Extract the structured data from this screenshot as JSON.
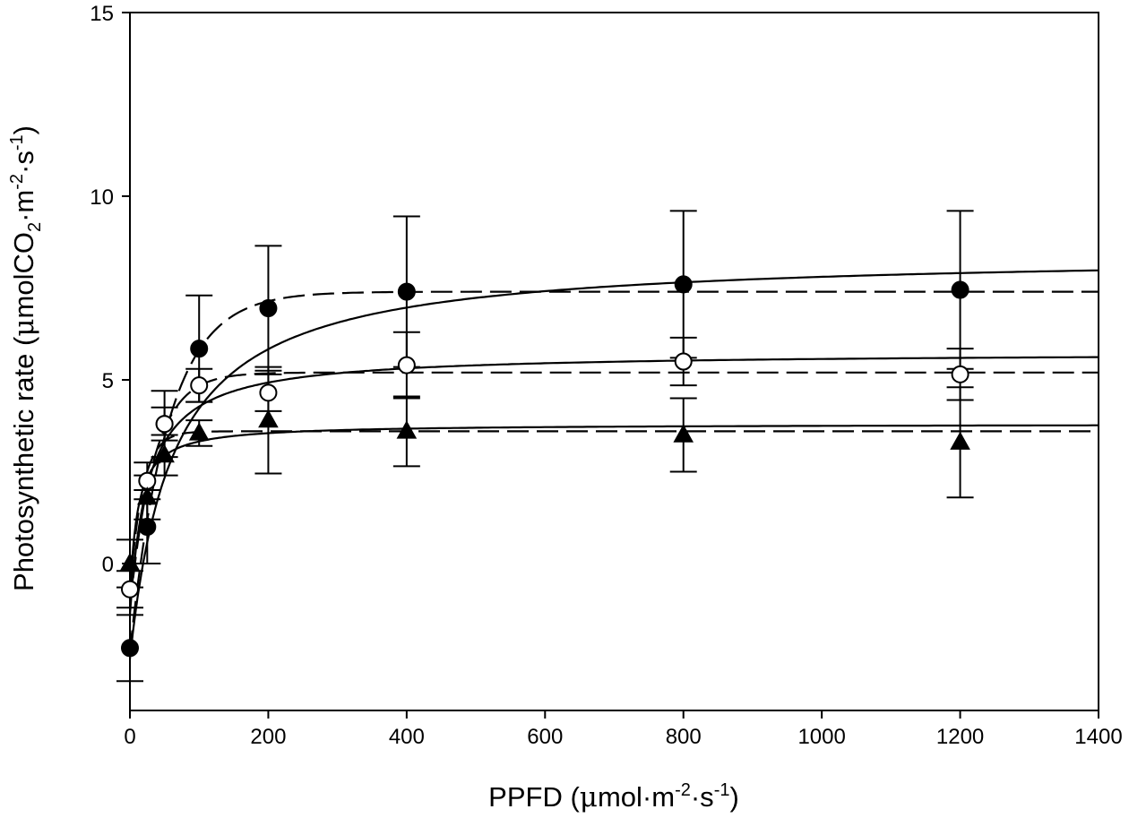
{
  "chart_data": {
    "type": "scatter",
    "xlabel": {
      "main": "PPFD (",
      "mu": "μ",
      "unit": "mol·m",
      "sup1": "-2",
      "mid": "·s",
      "sup2": "-1",
      "close": ")"
    },
    "ylabel": {
      "main": "Photosynthetic rate (",
      "mu": "μ",
      "unit": "molCO",
      "sub": "2",
      "mid1": "·m",
      "sup1": "-2",
      "mid2": "·s",
      "sup2": "-1",
      "close": ")"
    },
    "xlim": [
      0,
      1400
    ],
    "ylim": [
      -4,
      15
    ],
    "x_ticks": [
      "0",
      "200",
      "400",
      "600",
      "800",
      "1000",
      "1200",
      "1400"
    ],
    "y_ticks": [
      "0",
      "5",
      "10",
      "15"
    ],
    "grid": false,
    "legend": "none",
    "series": [
      {
        "marker": "filled-circle",
        "x": [
          0,
          25,
          50,
          100,
          200,
          400,
          800,
          1200
        ],
        "y": [
          -2.3,
          1.0,
          3.8,
          5.85,
          6.95,
          7.4,
          7.6,
          7.45
        ],
        "err": [
          0.9,
          1.0,
          0.9,
          1.45,
          1.7,
          2.05,
          2.0,
          2.15
        ],
        "fit_solid": {
          "type": "rectangular-hyperbola",
          "pmax": 8.45,
          "k": 62,
          "rd": -2.6
        },
        "fit_dashed": {
          "type": "exponential",
          "pmax": 7.4,
          "k": 55,
          "rd": -2.4
        }
      },
      {
        "marker": "open-circle",
        "x": [
          0,
          25,
          50,
          100,
          200,
          400,
          800,
          1200
        ],
        "y": [
          -0.7,
          2.25,
          3.8,
          4.85,
          4.65,
          5.4,
          5.5,
          5.15
        ],
        "err": [
          0.5,
          0.5,
          0.45,
          0.45,
          0.5,
          0.9,
          0.65,
          0.7
        ],
        "fit_solid": {
          "type": "rectangular-hyperbola",
          "pmax": 5.75,
          "k": 26,
          "rd": -1.4
        },
        "fit_dashed": {
          "type": "exponential",
          "pmax": 5.2,
          "k": 35,
          "rd": -1.2
        }
      },
      {
        "marker": "filled-triangle",
        "x": [
          0,
          25,
          50,
          100,
          200,
          400,
          800,
          1200
        ],
        "y": [
          0.0,
          1.8,
          2.95,
          3.55,
          3.9,
          3.6,
          3.5,
          3.3
        ],
        "err": [
          0.65,
          0.6,
          0.55,
          0.35,
          1.45,
          0.95,
          1.0,
          1.5
        ],
        "fit_solid": {
          "type": "rectangular-hyperbola",
          "pmax": 3.8,
          "k": 11,
          "rd": -1.0
        },
        "fit_dashed": {
          "type": "exponential",
          "pmax": 3.6,
          "k": 18,
          "rd": -0.8
        }
      }
    ]
  }
}
